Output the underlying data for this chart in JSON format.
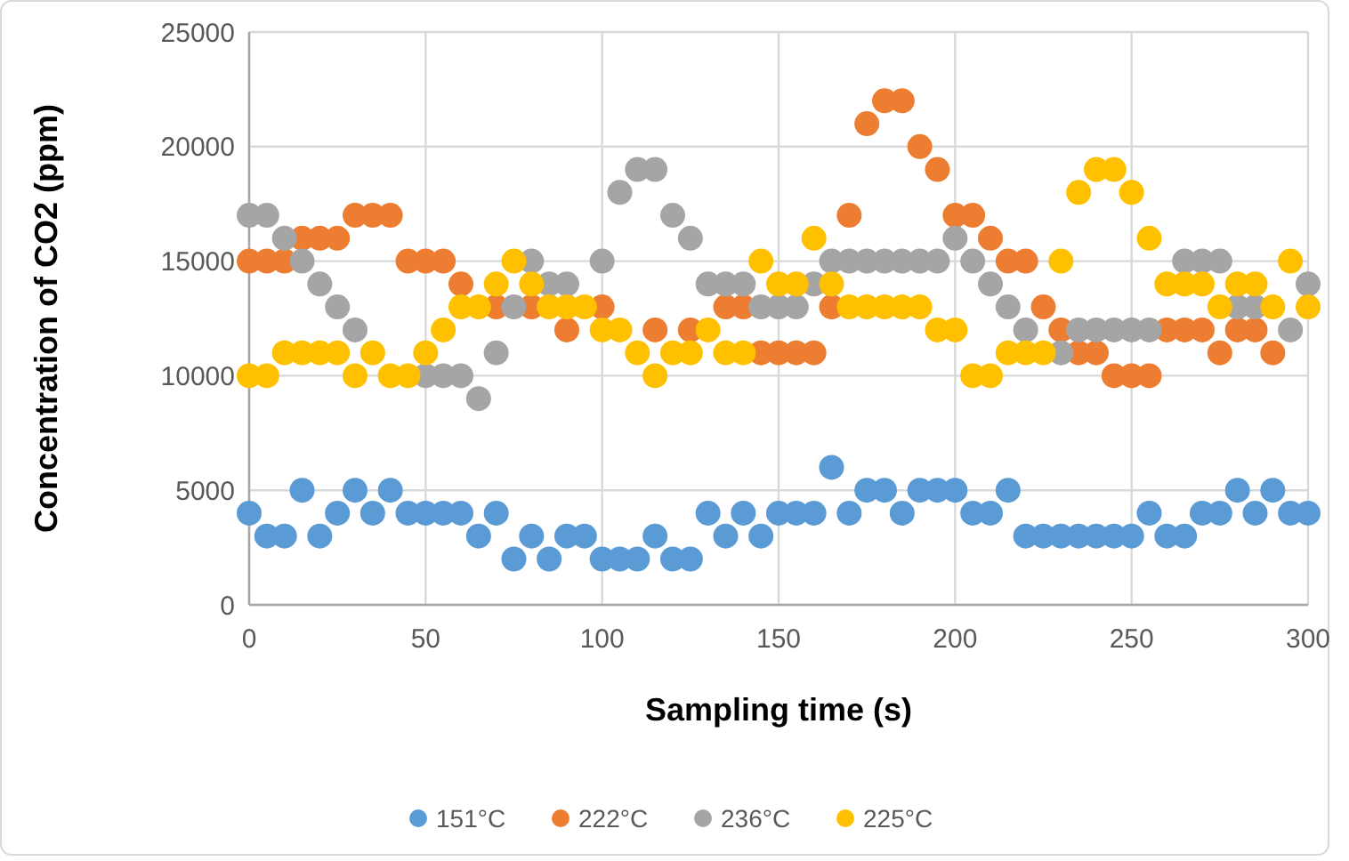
{
  "chart_data": {
    "type": "scatter",
    "xlabel": "Sampling time (s)",
    "ylabel": "Concentration of CO2 (ppm)",
    "x": [
      0,
      5,
      10,
      15,
      20,
      25,
      30,
      35,
      40,
      45,
      50,
      55,
      60,
      65,
      70,
      75,
      80,
      85,
      90,
      95,
      100,
      105,
      110,
      115,
      120,
      125,
      130,
      135,
      140,
      145,
      150,
      155,
      160,
      165,
      170,
      175,
      180,
      185,
      190,
      195,
      200,
      205,
      210,
      215,
      220,
      225,
      230,
      235,
      240,
      245,
      250,
      255,
      260,
      265,
      270,
      275,
      280,
      285,
      290,
      295,
      300
    ],
    "xlim": [
      0,
      300
    ],
    "xticks": [
      0,
      50,
      100,
      150,
      200,
      250,
      300
    ],
    "ylim": [
      0,
      25000
    ],
    "yticks": [
      0,
      5000,
      10000,
      15000,
      20000,
      25000
    ],
    "grid": true,
    "legend": "bottom",
    "marker": "circle",
    "series": [
      {
        "name": "151°C",
        "color": "#5b9bd5",
        "values": [
          4000,
          3000,
          3000,
          5000,
          3000,
          4000,
          5000,
          4000,
          5000,
          4000,
          4000,
          4000,
          4000,
          3000,
          4000,
          2000,
          3000,
          2000,
          3000,
          3000,
          2000,
          2000,
          2000,
          3000,
          2000,
          2000,
          4000,
          3000,
          4000,
          3000,
          4000,
          4000,
          4000,
          6000,
          4000,
          5000,
          5000,
          4000,
          5000,
          5000,
          5000,
          4000,
          4000,
          5000,
          3000,
          3000,
          3000,
          3000,
          3000,
          3000,
          3000,
          4000,
          3000,
          3000,
          4000,
          4000,
          5000,
          4000,
          5000,
          4000,
          4000
        ]
      },
      {
        "name": "222°C",
        "color": "#ed7d31",
        "values": [
          15000,
          15000,
          15000,
          16000,
          16000,
          16000,
          17000,
          17000,
          17000,
          15000,
          15000,
          15000,
          14000,
          null,
          13000,
          null,
          13000,
          null,
          12000,
          null,
          13000,
          null,
          null,
          12000,
          null,
          12000,
          null,
          13000,
          13000,
          11000,
          11000,
          11000,
          11000,
          13000,
          17000,
          21000,
          22000,
          22000,
          20000,
          19000,
          17000,
          17000,
          16000,
          15000,
          15000,
          13000,
          12000,
          11000,
          11000,
          10000,
          10000,
          10000,
          12000,
          12000,
          12000,
          11000,
          12000,
          12000,
          11000,
          null,
          null
        ]
      },
      {
        "name": "236°C",
        "color": "#a5a5a5",
        "values": [
          17000,
          17000,
          16000,
          15000,
          14000,
          13000,
          12000,
          null,
          null,
          null,
          10000,
          10000,
          10000,
          9000,
          11000,
          13000,
          15000,
          14000,
          14000,
          null,
          15000,
          18000,
          19000,
          19000,
          17000,
          16000,
          14000,
          14000,
          14000,
          13000,
          13000,
          13000,
          14000,
          15000,
          15000,
          15000,
          15000,
          15000,
          15000,
          15000,
          16000,
          15000,
          14000,
          13000,
          12000,
          null,
          11000,
          12000,
          12000,
          12000,
          12000,
          12000,
          null,
          15000,
          15000,
          15000,
          13000,
          13000,
          null,
          12000,
          14000
        ]
      },
      {
        "name": "225°C",
        "color": "#ffc000",
        "values": [
          10000,
          10000,
          11000,
          11000,
          11000,
          11000,
          10000,
          11000,
          10000,
          10000,
          11000,
          12000,
          13000,
          13000,
          14000,
          15000,
          14000,
          13000,
          13000,
          13000,
          12000,
          12000,
          11000,
          10000,
          11000,
          11000,
          12000,
          11000,
          11000,
          15000,
          14000,
          14000,
          16000,
          14000,
          13000,
          13000,
          13000,
          13000,
          13000,
          12000,
          12000,
          10000,
          10000,
          11000,
          11000,
          11000,
          15000,
          18000,
          19000,
          19000,
          18000,
          16000,
          14000,
          14000,
          14000,
          13000,
          14000,
          14000,
          13000,
          15000,
          13000
        ]
      }
    ]
  }
}
